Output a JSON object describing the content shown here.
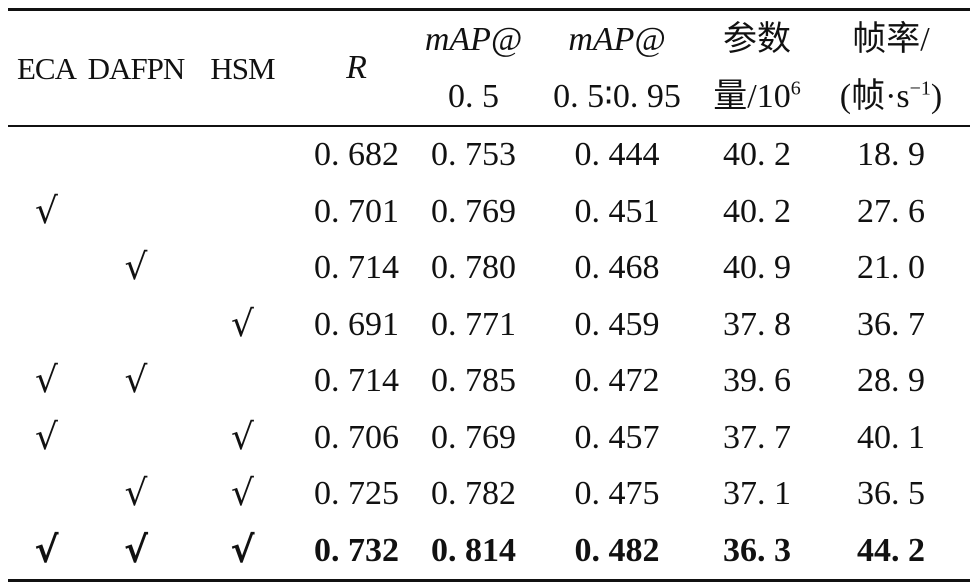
{
  "table": {
    "headers": {
      "eca": "ECA",
      "dafpn": "DAFPN",
      "hsm": "HSM",
      "r": "R",
      "map50_line1": "mAP@",
      "map50_line2": "0. 5",
      "map5095_line1": "mAP@",
      "map5095_line2": "0. 5∶0. 95",
      "params_line1": "参数",
      "params_line2": "量/10",
      "params_exp": "6",
      "fps_line1": "帧率/",
      "fps_line2": "(帧·s",
      "fps_exp": "−1",
      "fps_close": ")"
    },
    "rows": [
      {
        "eca": "",
        "dafpn": "",
        "hsm": "",
        "r": "0. 682",
        "map50": "0. 753",
        "map5095": "0. 444",
        "params": "40. 2",
        "fps": "18. 9"
      },
      {
        "eca": "√",
        "dafpn": "",
        "hsm": "",
        "r": "0. 701",
        "map50": "0. 769",
        "map5095": "0. 451",
        "params": "40. 2",
        "fps": "27. 6"
      },
      {
        "eca": "",
        "dafpn": "√",
        "hsm": "",
        "r": "0. 714",
        "map50": "0. 780",
        "map5095": "0. 468",
        "params": "40. 9",
        "fps": "21. 0"
      },
      {
        "eca": "",
        "dafpn": "",
        "hsm": "√",
        "r": "0. 691",
        "map50": "0. 771",
        "map5095": "0. 459",
        "params": "37. 8",
        "fps": "36. 7"
      },
      {
        "eca": "√",
        "dafpn": "√",
        "hsm": "",
        "r": "0. 714",
        "map50": "0. 785",
        "map5095": "0. 472",
        "params": "39. 6",
        "fps": "28. 9"
      },
      {
        "eca": "√",
        "dafpn": "",
        "hsm": "√",
        "r": "0. 706",
        "map50": "0. 769",
        "map5095": "0. 457",
        "params": "37. 7",
        "fps": "40. 1"
      },
      {
        "eca": "",
        "dafpn": "√",
        "hsm": "√",
        "r": "0. 725",
        "map50": "0. 782",
        "map5095": "0. 475",
        "params": "37. 1",
        "fps": "36. 5"
      },
      {
        "eca": "√",
        "dafpn": "√",
        "hsm": "√",
        "r": "0. 732",
        "map50": "0. 814",
        "map5095": "0. 482",
        "params": "36. 3",
        "fps": "44. 2"
      }
    ]
  }
}
